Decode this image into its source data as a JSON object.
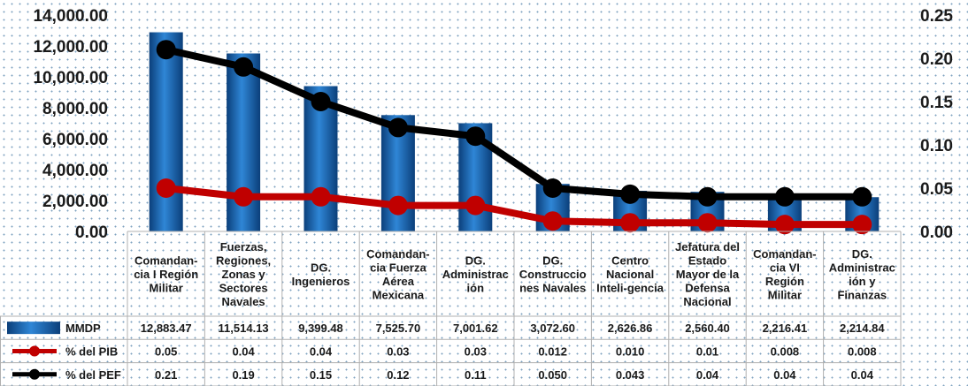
{
  "chart_data": {
    "type": "bar",
    "categories": [
      "Comandan-cia I Región Militar",
      "Fuerzas, Regiones, Zonas y Sectores Navales",
      "DG. Ingenieros",
      "Comandan-cia Fuerza Aérea Mexicana",
      "DG. Administrac ión",
      "DG. Construccio nes Navales",
      "Centro Nacional Inteli-gencia",
      "Jefatura del Estado Mayor de la Defensa Nacional",
      "Comandan-cia VI Región Militar",
      "DG. Administrac ión y Finanzas"
    ],
    "category_lines": [
      [
        "Comandan-",
        "cia I Región",
        "Militar"
      ],
      [
        "Fuerzas,",
        "Regiones,",
        "Zonas y",
        "Sectores",
        "Navales"
      ],
      [
        "DG.",
        "Ingenieros"
      ],
      [
        "Comandan-",
        "cia Fuerza",
        "Aérea",
        "Mexicana"
      ],
      [
        "DG.",
        "Administrac",
        "ión"
      ],
      [
        "DG.",
        "Construccio",
        "nes Navales"
      ],
      [
        "Centro",
        "Nacional",
        "Inteli-gencia"
      ],
      [
        "Jefatura del",
        "Estado",
        "Mayor de la",
        "Defensa",
        "Nacional"
      ],
      [
        "Comandan-",
        "cia VI",
        "Región",
        "Militar"
      ],
      [
        "DG.",
        "Administrac",
        "ión y",
        "Finanzas"
      ]
    ],
    "series": [
      {
        "name": "MMDP",
        "type": "bar",
        "axis": "left",
        "color": "#1565c0",
        "values": [
          12883.47,
          11514.13,
          9399.48,
          7525.7,
          7001.62,
          3072.6,
          2626.86,
          2560.4,
          2216.41,
          2214.84
        ],
        "labels": [
          "12,883.47",
          "11,514.13",
          "9,399.48",
          "7,525.70",
          "7,001.62",
          "3,072.60",
          "2,626.86",
          "2,560.40",
          "2,216.41",
          "2,214.84"
        ]
      },
      {
        "name": "% del PIB",
        "type": "line",
        "axis": "right",
        "color": "#c00000",
        "values": [
          0.05,
          0.04,
          0.04,
          0.03,
          0.03,
          0.012,
          0.01,
          0.01,
          0.008,
          0.008
        ],
        "labels": [
          "0.05",
          "0.04",
          "0.04",
          "0.03",
          "0.03",
          "0.012",
          "0.010",
          "0.01",
          "0.008",
          "0.008"
        ]
      },
      {
        "name": "% del PEF",
        "type": "line",
        "axis": "right",
        "color": "#000000",
        "values": [
          0.21,
          0.19,
          0.15,
          0.12,
          0.11,
          0.05,
          0.043,
          0.04,
          0.04,
          0.04
        ],
        "labels": [
          "0.21",
          "0.19",
          "0.15",
          "0.12",
          "0.11",
          "0.050",
          "0.043",
          "0.04",
          "0.04",
          "0.04"
        ]
      }
    ],
    "y_left": {
      "ylim": [
        0,
        14000
      ],
      "ticks": [
        "0.00",
        "2,000.00",
        "4,000.00",
        "6,000.00",
        "8,000.00",
        "10,000.00",
        "12,000.00",
        "14,000.00"
      ]
    },
    "y_right": {
      "ylim": [
        0,
        0.25
      ],
      "ticks": [
        "0.00",
        "0.05",
        "0.10",
        "0.15",
        "0.20",
        "0.25"
      ]
    },
    "legend_placement": "data-table",
    "grid": false
  }
}
